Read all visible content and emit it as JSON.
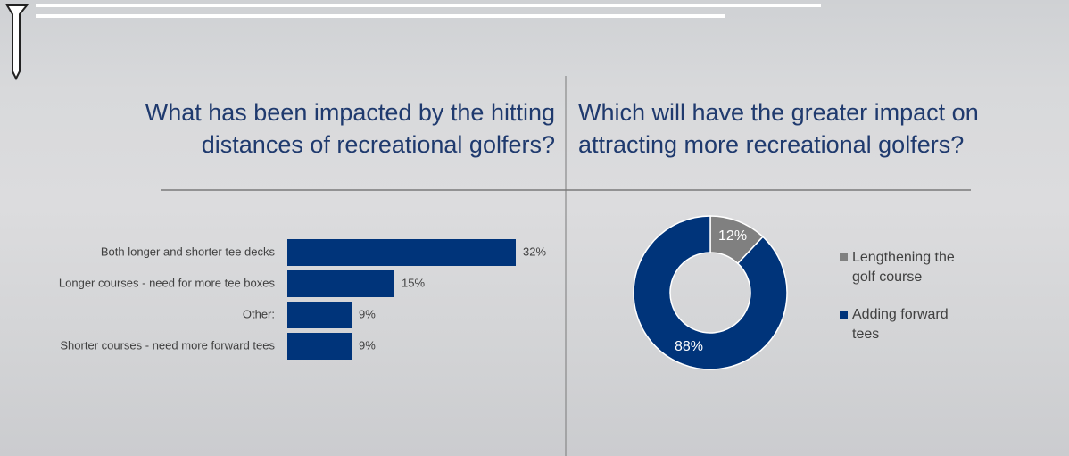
{
  "chart_data": [
    {
      "type": "hbar",
      "title": "What has been impacted by the hitting distances of recreational golfers?",
      "categories": [
        "Both longer and shorter tee decks",
        "Longer courses - need for more tee boxes",
        "Other:",
        "Shorter courses - need more forward tees"
      ],
      "values": [
        32,
        15,
        9,
        9
      ],
      "value_labels": [
        "32%",
        "15%",
        "9%",
        "9%"
      ],
      "color": "#00347a"
    },
    {
      "type": "donut",
      "title": "Which will have the greater impact on attracting more recreational golfers?",
      "categories": [
        "Lengthening the golf course",
        "Adding forward tees"
      ],
      "values": [
        12,
        88
      ],
      "value_labels": [
        "12%",
        "88%"
      ],
      "colors": [
        "#808080",
        "#00347a"
      ]
    }
  ]
}
